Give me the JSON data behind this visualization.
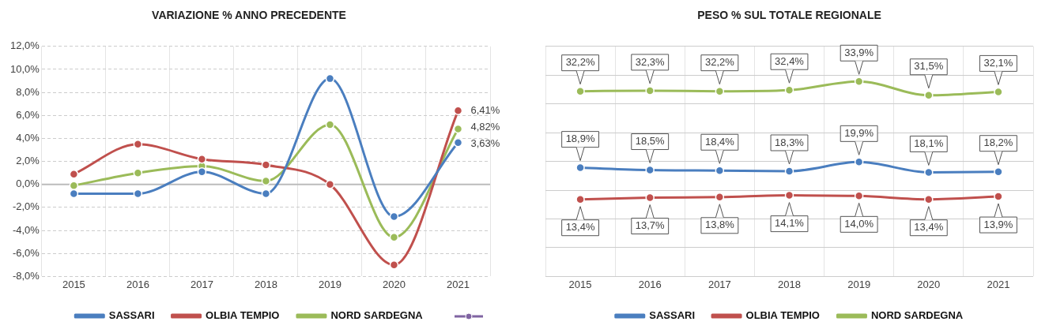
{
  "chart_data": [
    {
      "type": "line",
      "title": "VARIAZIONE % ANNO PRECEDENTE",
      "categories": [
        "2015",
        "2016",
        "2017",
        "2018",
        "2019",
        "2020",
        "2021"
      ],
      "series": [
        {
          "name": "SASSARI",
          "color": "#4a7ebf",
          "values": [
            -0.8,
            -0.8,
            1.1,
            -0.8,
            9.2,
            -2.8,
            3.63
          ],
          "value_labels": [
            null,
            null,
            null,
            null,
            null,
            null,
            "3,63%"
          ]
        },
        {
          "name": "OLBIA TEMPIO",
          "color": "#c0504d",
          "values": [
            0.9,
            3.5,
            2.2,
            1.7,
            0.0,
            -7.0,
            6.41
          ],
          "value_labels": [
            null,
            null,
            null,
            null,
            null,
            null,
            "6,41%"
          ]
        },
        {
          "name": "NORD SARDEGNA",
          "color": "#9bbb59",
          "values": [
            -0.1,
            1.0,
            1.6,
            0.3,
            5.2,
            -4.6,
            4.82
          ],
          "value_labels": [
            null,
            null,
            null,
            null,
            null,
            null,
            "4,82%"
          ]
        }
      ],
      "ref_lines": [
        {
          "axis": "y",
          "value": 0,
          "color": "#bbbbbb"
        }
      ],
      "ylim": [
        -8,
        12
      ],
      "yticks": [
        {
          "value": -8,
          "label": "-8,0%"
        },
        {
          "value": -6,
          "label": "-6,0%"
        },
        {
          "value": -4,
          "label": "-4,0%"
        },
        {
          "value": -2,
          "label": "-2,0%"
        },
        {
          "value": 0,
          "label": "0,0%"
        },
        {
          "value": 2,
          "label": "2,0%"
        },
        {
          "value": 4,
          "label": "4,0%"
        },
        {
          "value": 6,
          "label": "6,0%"
        },
        {
          "value": 8,
          "label": "8,0%"
        },
        {
          "value": 10,
          "label": "10,0%"
        },
        {
          "value": 12,
          "label": "12,0%"
        }
      ],
      "grid": true,
      "legend": "bottom",
      "marker": "circle"
    },
    {
      "type": "line",
      "title": "PESO % SUL TOTALE REGIONALE",
      "categories": [
        "2015",
        "2016",
        "2017",
        "2018",
        "2019",
        "2020",
        "2021"
      ],
      "series": [
        {
          "name": "SASSARI",
          "color": "#4a7ebf",
          "values": [
            18.9,
            18.5,
            18.4,
            18.3,
            19.9,
            18.1,
            18.2
          ],
          "value_labels": [
            "18,9%",
            "18,5%",
            "18,4%",
            "18,3%",
            "19,9%",
            "18,1%",
            "18,2%"
          ]
        },
        {
          "name": "OLBIA TEMPIO",
          "color": "#c0504d",
          "values": [
            13.4,
            13.7,
            13.8,
            14.1,
            14.0,
            13.4,
            13.9
          ],
          "value_labels": [
            "13,4%",
            "13,7%",
            "13,8%",
            "14,1%",
            "14,0%",
            "13,4%",
            "13,9%"
          ]
        },
        {
          "name": "NORD SARDEGNA",
          "color": "#9bbb59",
          "values": [
            32.2,
            32.3,
            32.2,
            32.4,
            33.9,
            31.5,
            32.1
          ],
          "value_labels": [
            "32,2%",
            "32,3%",
            "32,2%",
            "32,4%",
            "33,9%",
            "31,5%",
            "32,1%"
          ]
        }
      ],
      "ylim": [
        0,
        40
      ],
      "yticks": [
        {
          "value": 0,
          "label": null
        },
        {
          "value": 5,
          "label": null
        },
        {
          "value": 10,
          "label": null
        },
        {
          "value": 15,
          "label": null
        },
        {
          "value": 20,
          "label": null
        },
        {
          "value": 25,
          "label": null
        },
        {
          "value": 30,
          "label": null
        },
        {
          "value": 35,
          "label": null
        },
        {
          "value": 40,
          "label": null
        }
      ],
      "tick_labels": "x",
      "grid": true,
      "legend": "bottom",
      "marker": "circle"
    }
  ]
}
